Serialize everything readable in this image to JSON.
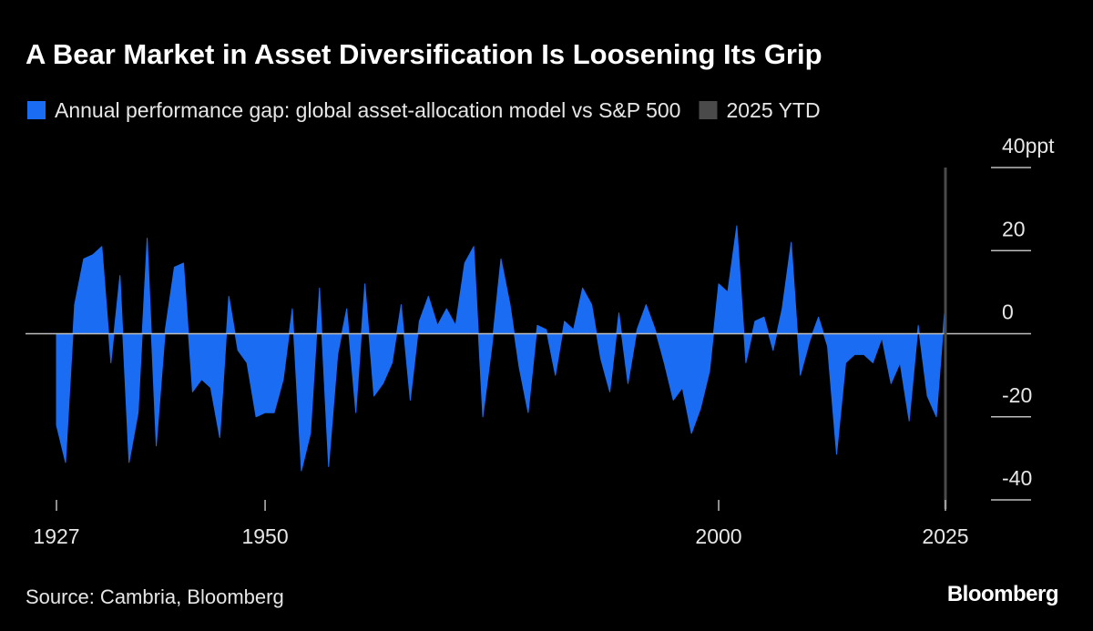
{
  "chart_data": {
    "type": "area",
    "title": "A Bear Market in Asset Diversification Is Loosening Its Grip",
    "source": "Source: Cambria, Bloomberg",
    "brand": "Bloomberg",
    "x": [
      1927,
      1928,
      1929,
      1930,
      1931,
      1932,
      1933,
      1934,
      1935,
      1936,
      1937,
      1938,
      1939,
      1940,
      1941,
      1942,
      1943,
      1944,
      1945,
      1946,
      1947,
      1948,
      1949,
      1950,
      1951,
      1952,
      1953,
      1954,
      1955,
      1956,
      1957,
      1958,
      1959,
      1960,
      1961,
      1962,
      1963,
      1964,
      1965,
      1966,
      1967,
      1968,
      1969,
      1970,
      1971,
      1972,
      1973,
      1974,
      1975,
      1976,
      1977,
      1978,
      1979,
      1980,
      1981,
      1982,
      1983,
      1984,
      1985,
      1986,
      1987,
      1988,
      1989,
      1990,
      1991,
      1992,
      1993,
      1994,
      1995,
      1996,
      1997,
      1998,
      1999,
      2000,
      2001,
      2002,
      2003,
      2004,
      2005,
      2006,
      2007,
      2008,
      2009,
      2010,
      2011,
      2012,
      2013,
      2014,
      2015,
      2016,
      2017,
      2018,
      2019,
      2020,
      2021,
      2022,
      2023,
      2024,
      2025
    ],
    "series": [
      {
        "name": "Annual performance gap: global asset-allocation model vs S&P 500",
        "color": "#1a6df2",
        "values": [
          -22,
          -31,
          7,
          18,
          19,
          21,
          -7,
          14,
          -31,
          -19,
          23,
          -27,
          1,
          16,
          17,
          -14,
          -11,
          -13,
          -25,
          9,
          -4,
          -7,
          -20,
          -19,
          -19,
          -11,
          6,
          -33,
          -24,
          11,
          -32,
          -5,
          6,
          -19,
          12,
          -15,
          -12,
          -7,
          7,
          -16,
          3,
          9,
          2,
          6,
          2,
          17,
          21,
          -20,
          -3,
          18,
          7,
          -8,
          -19,
          2,
          1,
          -10,
          3,
          1,
          11,
          7,
          -6,
          -14,
          5,
          -12,
          1,
          7,
          1,
          -7,
          -16,
          -13,
          -24,
          -18,
          -9,
          12,
          10,
          26,
          -7,
          3,
          4,
          -4,
          6,
          22,
          -10,
          -2,
          4,
          -3,
          -29,
          -7,
          -5,
          -5,
          -7,
          -1,
          -12,
          -7,
          -21,
          2,
          -15,
          -20,
          8
        ]
      }
    ],
    "highlight": {
      "name": "2025 YTD",
      "x": 2025,
      "color": "#4a4a4a"
    },
    "xlim": [
      1927,
      2025
    ],
    "xticks": [
      1927,
      1950,
      2000,
      2025
    ],
    "ylim": [
      -40,
      40
    ],
    "yticks": [
      {
        "value": 40,
        "label": "40ppt"
      },
      20,
      0,
      -20,
      -40
    ]
  }
}
